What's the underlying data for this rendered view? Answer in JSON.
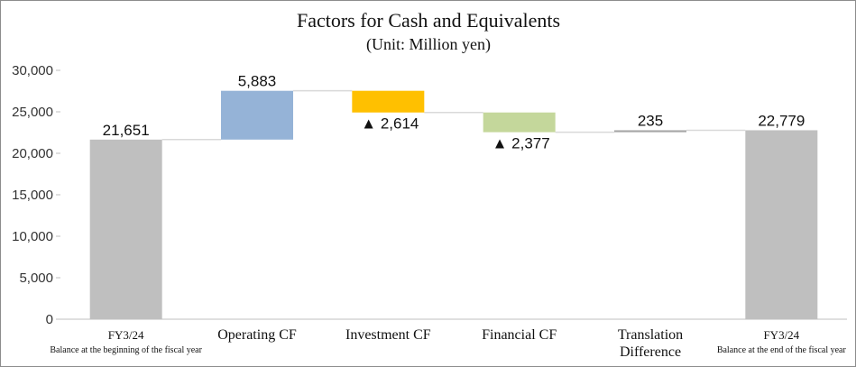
{
  "chart_data": {
    "type": "bar",
    "subtype": "waterfall",
    "title": "Factors for Cash and Equivalents",
    "subtitle": "(Unit: Million yen)",
    "ylim": [
      0,
      30000
    ],
    "yticks": [
      "0",
      "5,000",
      "10,000",
      "15,000",
      "20,000",
      "25,000",
      "30,000"
    ],
    "grid": false,
    "legend": "none",
    "categories": [
      {
        "label": "FY3/24",
        "sublabel": "Balance at the beginning of the fiscal year"
      },
      {
        "label": "Operating CF",
        "sublabel": ""
      },
      {
        "label": "Investment CF",
        "sublabel": ""
      },
      {
        "label": "Financial CF",
        "sublabel": ""
      },
      {
        "label": "Translation",
        "sublabel": "Difference"
      },
      {
        "label": "FY3/24",
        "sublabel": "Balance at the end of the fiscal year"
      }
    ],
    "bars": [
      {
        "kind": "total",
        "start": 0,
        "end": 21651,
        "data_label": "21,651",
        "color": "#bfbfbf"
      },
      {
        "kind": "increase",
        "start": 21651,
        "end": 27534,
        "data_label": "5,883",
        "color": "#95b3d7"
      },
      {
        "kind": "decrease",
        "start": 27534,
        "end": 24920,
        "data_label": "▲ 2,614",
        "color": "#ffc000"
      },
      {
        "kind": "decrease",
        "start": 24920,
        "end": 22543,
        "data_label": "▲ 2,377",
        "color": "#c4d79b"
      },
      {
        "kind": "increase",
        "start": 22543,
        "end": 22778,
        "data_label": "235",
        "color": "#a6a6a6"
      },
      {
        "kind": "total",
        "start": 0,
        "end": 22779,
        "data_label": "22,779",
        "color": "#bfbfbf"
      }
    ],
    "axis_color": "#bfbfbf",
    "connector_color": "#d9d9d9"
  }
}
